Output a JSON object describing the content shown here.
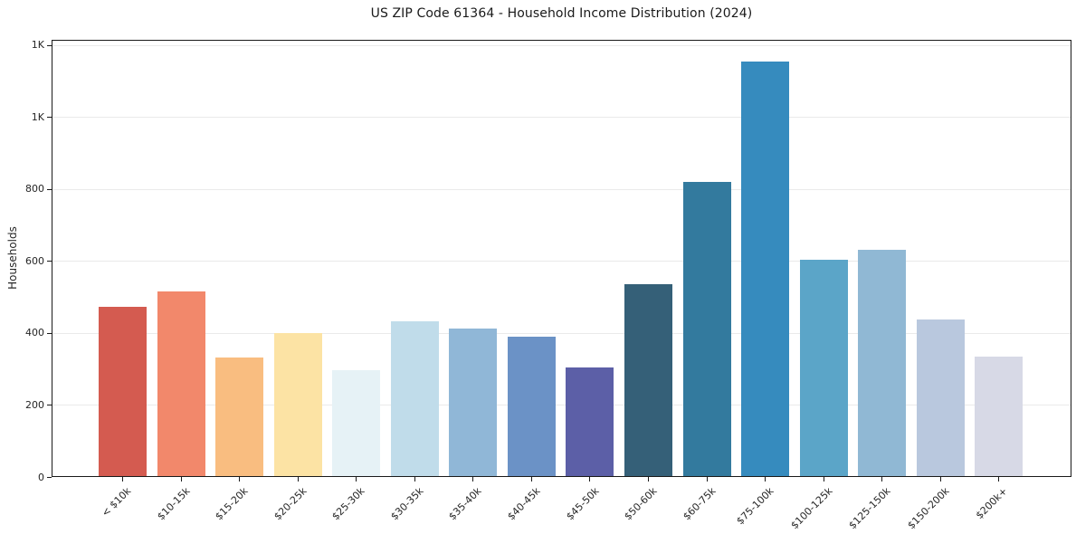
{
  "figure": {
    "background": "#ffffff"
  },
  "chart_data": {
    "type": "bar",
    "title": "US ZIP Code 61364 - Household Income Distribution (2024)",
    "xlabel": "",
    "ylabel": "Households",
    "categories": [
      "< $10k",
      "$10-15k",
      "$15-20k",
      "$20-25k",
      "$25-30k",
      "$30-35k",
      "$35-40k",
      "$40-45k",
      "$45-50k",
      "$50-60k",
      "$60-75k",
      "$75-100k",
      "$100-125k",
      "$125-150k",
      "$150-200k",
      "$200k+"
    ],
    "values": [
      473,
      515,
      333,
      400,
      297,
      432,
      411,
      390,
      305,
      536,
      820,
      1153,
      604,
      631,
      437,
      334
    ],
    "bar_colors": [
      "#d45b50",
      "#f2886b",
      "#f9bd80",
      "#fce3a4",
      "#e6f2f6",
      "#c0dcea",
      "#90b7d7",
      "#6b92c6",
      "#5c5fa7",
      "#356078",
      "#337a9e",
      "#368bbe",
      "#5ba5c8",
      "#90b8d4",
      "#b9c8de",
      "#d7d9e6"
    ],
    "ylim": [
      0,
      1214
    ],
    "yticks": {
      "values": [
        0,
        200,
        400,
        600,
        800,
        1000,
        1200
      ],
      "labels": [
        "0",
        "200",
        "400",
        "600",
        "800",
        "1K",
        "1K"
      ]
    },
    "grid": "horizontal",
    "legend": "none",
    "styles": {
      "grid_color": "#eaeaea",
      "spine_color": "#1a1a1a",
      "text_color": "#262626",
      "background": "#ffffff"
    }
  }
}
